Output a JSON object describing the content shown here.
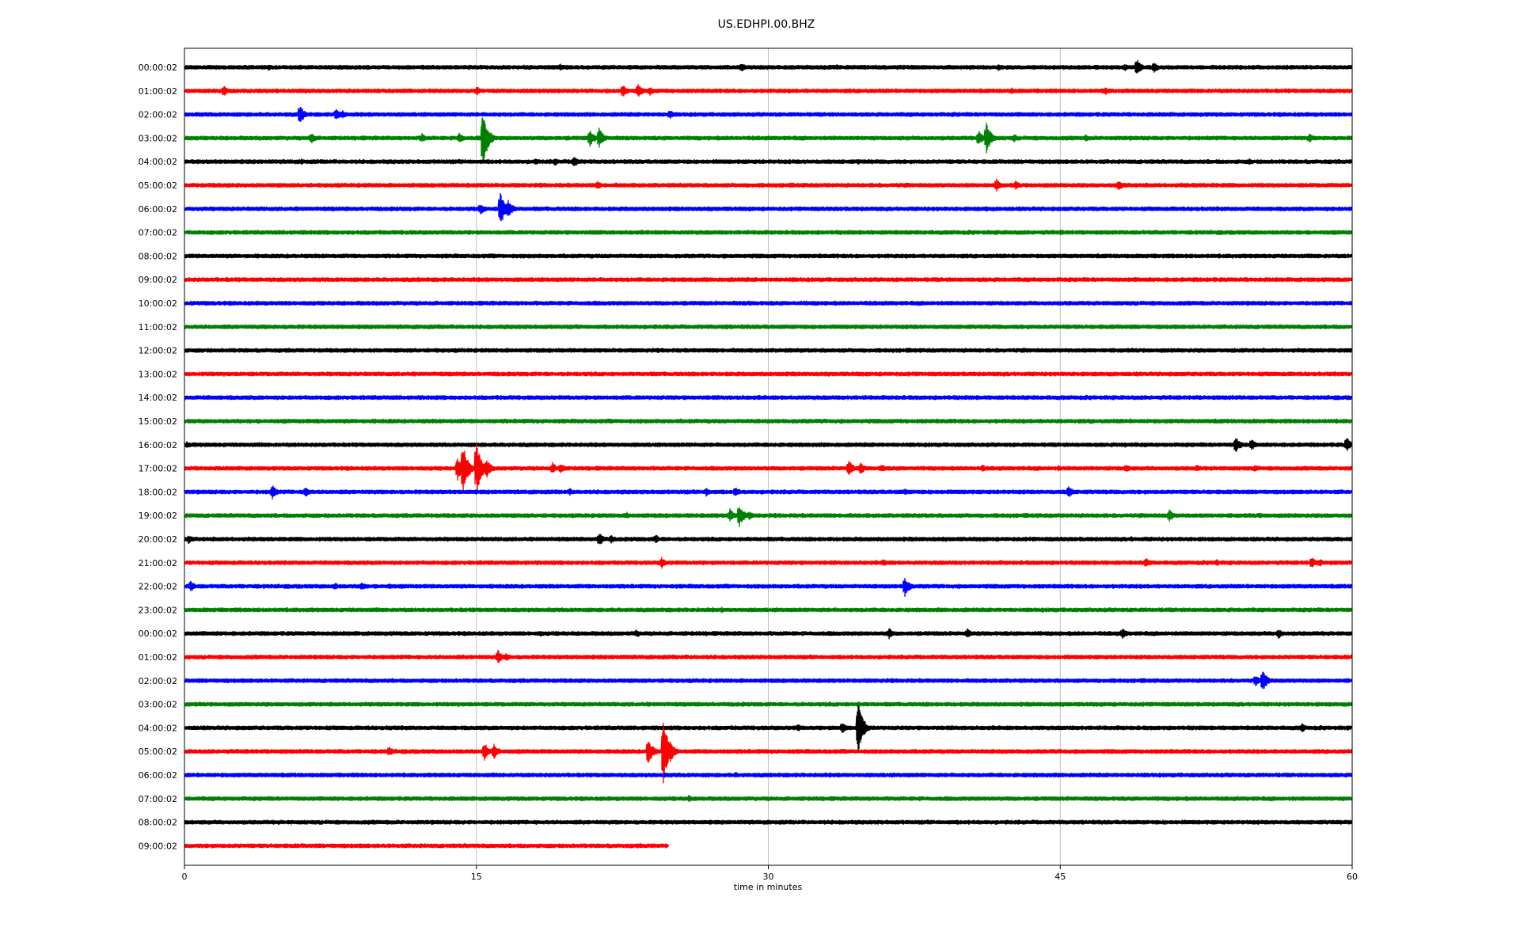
{
  "chart_data": {
    "type": "line",
    "title": "US.EDHPI.00.BHZ",
    "xlabel": "time in minutes",
    "ylabel": "",
    "xlim": [
      0,
      60
    ],
    "x_ticks": [
      0,
      15,
      30,
      45,
      60
    ],
    "grid": "vertical",
    "color_cycle": [
      "#000000",
      "#ff0000",
      "#0000ff",
      "#008000"
    ],
    "rows": [
      {
        "label": "00:00:02",
        "end_minute": 60,
        "events": [
          {
            "t": 4.3,
            "amp": 4
          },
          {
            "t": 19.3,
            "amp": 5
          },
          {
            "t": 28.6,
            "amp": 6
          },
          {
            "t": 33.5,
            "amp": 4
          },
          {
            "t": 41.8,
            "amp": 5
          },
          {
            "t": 48.3,
            "amp": 5
          },
          {
            "t": 48.9,
            "amp": 12
          },
          {
            "t": 49.8,
            "amp": 8
          }
        ]
      },
      {
        "label": "01:00:02",
        "end_minute": 60,
        "events": [
          {
            "t": 2.0,
            "amp": 8
          },
          {
            "t": 15.0,
            "amp": 6
          },
          {
            "t": 22.5,
            "amp": 10
          },
          {
            "t": 23.3,
            "amp": 9
          },
          {
            "t": 23.9,
            "amp": 6
          },
          {
            "t": 42.5,
            "amp": 4
          },
          {
            "t": 47.3,
            "amp": 6
          }
        ]
      },
      {
        "label": "02:00:02",
        "end_minute": 60,
        "events": [
          {
            "t": 5.9,
            "amp": 14
          },
          {
            "t": 7.8,
            "amp": 8
          },
          {
            "t": 8.1,
            "amp": 6
          },
          {
            "t": 24.9,
            "amp": 7
          },
          {
            "t": 39.5,
            "amp": 4
          }
        ]
      },
      {
        "label": "03:00:02",
        "end_minute": 60,
        "events": [
          {
            "t": 6.5,
            "amp": 8
          },
          {
            "t": 12.2,
            "amp": 6
          },
          {
            "t": 14.1,
            "amp": 8
          },
          {
            "t": 15.3,
            "amp": 44
          },
          {
            "t": 20.8,
            "amp": 12
          },
          {
            "t": 21.3,
            "amp": 14
          },
          {
            "t": 40.8,
            "amp": 10
          },
          {
            "t": 41.2,
            "amp": 20
          },
          {
            "t": 42.6,
            "amp": 6
          },
          {
            "t": 46.3,
            "amp": 5
          },
          {
            "t": 57.8,
            "amp": 6
          }
        ]
      },
      {
        "label": "04:00:02",
        "end_minute": 60,
        "events": [
          {
            "t": 6.0,
            "amp": 4
          },
          {
            "t": 18.0,
            "amp": 5
          },
          {
            "t": 19.0,
            "amp": 6
          },
          {
            "t": 20.0,
            "amp": 8
          },
          {
            "t": 34.6,
            "amp": 4
          },
          {
            "t": 54.7,
            "amp": 4
          }
        ]
      },
      {
        "label": "05:00:02",
        "end_minute": 60,
        "events": [
          {
            "t": 21.2,
            "amp": 6
          },
          {
            "t": 41.7,
            "amp": 9
          },
          {
            "t": 42.7,
            "amp": 6
          },
          {
            "t": 48.0,
            "amp": 7
          }
        ]
      },
      {
        "label": "06:00:02",
        "end_minute": 60,
        "events": [
          {
            "t": 15.2,
            "amp": 8
          },
          {
            "t": 16.2,
            "amp": 26
          },
          {
            "t": 16.6,
            "amp": 14
          },
          {
            "t": 41.2,
            "amp": 4
          }
        ]
      },
      {
        "label": "07:00:02",
        "end_minute": 60,
        "events": [
          {
            "t": 21.0,
            "amp": 4
          },
          {
            "t": 45.0,
            "amp": 4
          }
        ]
      },
      {
        "label": "08:00:02",
        "end_minute": 60,
        "events": []
      },
      {
        "label": "09:00:02",
        "end_minute": 60,
        "events": [
          {
            "t": 12.0,
            "amp": 3
          },
          {
            "t": 40.0,
            "amp": 3
          }
        ]
      },
      {
        "label": "10:00:02",
        "end_minute": 60,
        "events": [
          {
            "t": 29.0,
            "amp": 3
          },
          {
            "t": 40.0,
            "amp": 3
          }
        ]
      },
      {
        "label": "11:00:02",
        "end_minute": 60,
        "events": [
          {
            "t": 27.8,
            "amp": 4
          }
        ]
      },
      {
        "label": "12:00:02",
        "end_minute": 60,
        "events": []
      },
      {
        "label": "13:00:02",
        "end_minute": 60,
        "events": [
          {
            "t": 36.0,
            "amp": 3
          }
        ]
      },
      {
        "label": "14:00:02",
        "end_minute": 60,
        "events": []
      },
      {
        "label": "15:00:02",
        "end_minute": 60,
        "events": [
          {
            "t": 6.8,
            "amp": 4
          },
          {
            "t": 46.5,
            "amp": 4
          }
        ]
      },
      {
        "label": "16:00:02",
        "end_minute": 60,
        "events": [
          {
            "t": 0.1,
            "amp": 5
          },
          {
            "t": 48.3,
            "amp": 4
          },
          {
            "t": 54.0,
            "amp": 12
          },
          {
            "t": 54.8,
            "amp": 8
          },
          {
            "t": 59.7,
            "amp": 10
          }
        ]
      },
      {
        "label": "17:00:02",
        "end_minute": 60,
        "events": [
          {
            "t": 14.0,
            "amp": 18
          },
          {
            "t": 14.3,
            "amp": 36
          },
          {
            "t": 15.0,
            "amp": 36
          },
          {
            "t": 15.5,
            "amp": 14
          },
          {
            "t": 18.9,
            "amp": 8
          },
          {
            "t": 19.3,
            "amp": 8
          },
          {
            "t": 34.1,
            "amp": 12
          },
          {
            "t": 34.7,
            "amp": 9
          },
          {
            "t": 35.8,
            "amp": 6
          },
          {
            "t": 41.0,
            "amp": 5
          },
          {
            "t": 44.9,
            "amp": 4
          },
          {
            "t": 48.4,
            "amp": 6
          },
          {
            "t": 52.0,
            "amp": 5
          },
          {
            "t": 55.0,
            "amp": 6
          }
        ]
      },
      {
        "label": "18:00:02",
        "end_minute": 60,
        "events": [
          {
            "t": 4.5,
            "amp": 10
          },
          {
            "t": 6.2,
            "amp": 8
          },
          {
            "t": 19.8,
            "amp": 5
          },
          {
            "t": 26.8,
            "amp": 6
          },
          {
            "t": 28.3,
            "amp": 7
          },
          {
            "t": 37.0,
            "amp": 5
          },
          {
            "t": 45.4,
            "amp": 9
          }
        ]
      },
      {
        "label": "19:00:02",
        "end_minute": 60,
        "events": [
          {
            "t": 22.7,
            "amp": 5
          },
          {
            "t": 28.0,
            "amp": 10
          },
          {
            "t": 28.5,
            "amp": 16
          },
          {
            "t": 29.0,
            "amp": 6
          },
          {
            "t": 50.6,
            "amp": 8
          },
          {
            "t": 55.2,
            "amp": 4
          }
        ]
      },
      {
        "label": "20:00:02",
        "end_minute": 60,
        "events": [
          {
            "t": 0.2,
            "amp": 6
          },
          {
            "t": 21.3,
            "amp": 10
          },
          {
            "t": 21.9,
            "amp": 6
          },
          {
            "t": 24.2,
            "amp": 6
          },
          {
            "t": 48.6,
            "amp": 4
          }
        ]
      },
      {
        "label": "21:00:02",
        "end_minute": 60,
        "events": [
          {
            "t": 24.5,
            "amp": 8
          },
          {
            "t": 35.9,
            "amp": 5
          },
          {
            "t": 49.4,
            "amp": 7
          },
          {
            "t": 53.0,
            "amp": 5
          },
          {
            "t": 57.9,
            "amp": 8
          },
          {
            "t": 58.3,
            "amp": 6
          }
        ]
      },
      {
        "label": "22:00:02",
        "end_minute": 60,
        "events": [
          {
            "t": 0.3,
            "amp": 8
          },
          {
            "t": 7.7,
            "amp": 6
          },
          {
            "t": 9.1,
            "amp": 6
          },
          {
            "t": 10.5,
            "amp": 5
          },
          {
            "t": 37.0,
            "amp": 14
          }
        ]
      },
      {
        "label": "23:00:02",
        "end_minute": 60,
        "events": [
          {
            "t": 27.6,
            "amp": 4
          }
        ]
      },
      {
        "label": "00:00:02",
        "end_minute": 60,
        "events": [
          {
            "t": 18.3,
            "amp": 4
          },
          {
            "t": 23.2,
            "amp": 6
          },
          {
            "t": 36.2,
            "amp": 7
          },
          {
            "t": 40.2,
            "amp": 7
          },
          {
            "t": 48.2,
            "amp": 7
          },
          {
            "t": 56.2,
            "amp": 7
          }
        ]
      },
      {
        "label": "01:00:02",
        "end_minute": 60,
        "events": [
          {
            "t": 16.1,
            "amp": 9
          },
          {
            "t": 16.5,
            "amp": 6
          }
        ]
      },
      {
        "label": "02:00:02",
        "end_minute": 60,
        "events": [
          {
            "t": 55.0,
            "amp": 8
          },
          {
            "t": 55.4,
            "amp": 14
          }
        ]
      },
      {
        "label": "03:00:02",
        "end_minute": 60,
        "events": [
          {
            "t": 26.2,
            "amp": 3
          },
          {
            "t": 34.6,
            "amp": 4
          }
        ]
      },
      {
        "label": "04:00:02",
        "end_minute": 60,
        "events": [
          {
            "t": 10.5,
            "amp": 4
          },
          {
            "t": 31.5,
            "amp": 5
          },
          {
            "t": 33.8,
            "amp": 8
          },
          {
            "t": 34.6,
            "amp": 36
          },
          {
            "t": 57.4,
            "amp": 7
          }
        ]
      },
      {
        "label": "05:00:02",
        "end_minute": 60,
        "events": [
          {
            "t": 10.5,
            "amp": 7
          },
          {
            "t": 15.4,
            "amp": 12
          },
          {
            "t": 15.9,
            "amp": 10
          },
          {
            "t": 23.8,
            "amp": 20
          },
          {
            "t": 24.6,
            "amp": 46
          },
          {
            "t": 24.9,
            "amp": 18
          }
        ]
      },
      {
        "label": "06:00:02",
        "end_minute": 60,
        "events": [
          {
            "t": 28.3,
            "amp": 4
          }
        ]
      },
      {
        "label": "07:00:02",
        "end_minute": 60,
        "events": [
          {
            "t": 25.9,
            "amp": 5
          }
        ]
      },
      {
        "label": "08:00:02",
        "end_minute": 60,
        "events": []
      },
      {
        "label": "09:00:02",
        "end_minute": 24.9,
        "events": []
      }
    ]
  }
}
